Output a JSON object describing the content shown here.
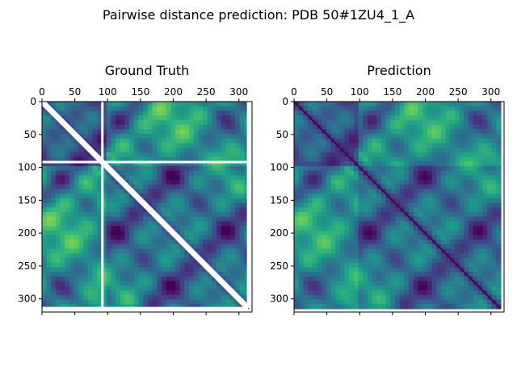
{
  "figure": {
    "suptitle": "Pairwise distance prediction: PDB 50#1ZU4_1_A"
  },
  "chart_data": [
    {
      "type": "heatmap",
      "title": "Ground Truth",
      "x_ticks": [
        0,
        50,
        100,
        150,
        200,
        250,
        300
      ],
      "y_ticks": [
        0,
        50,
        100,
        150,
        200,
        250,
        300
      ],
      "xlim": [
        0,
        320
      ],
      "ylim": [
        320,
        0
      ],
      "matrix_size": 314,
      "colormap": "viridis",
      "masked_index": 92,
      "masked_diagonal": true,
      "masked_color": "#ffffff"
    },
    {
      "type": "heatmap",
      "title": "Prediction",
      "x_ticks": [
        0,
        50,
        100,
        150,
        200,
        250,
        300
      ],
      "y_ticks": [
        0,
        50,
        100,
        150,
        200,
        250,
        300
      ],
      "xlim": [
        0,
        320
      ],
      "ylim": [
        320,
        0
      ],
      "matrix_size": 314,
      "colormap": "viridis",
      "masked_index": null,
      "masked_diagonal": false,
      "masked_color": "#ffffff"
    }
  ],
  "colors": {
    "viridis_low": "#440154",
    "viridis_mid": "#21918c",
    "viridis_high": "#fde725"
  }
}
